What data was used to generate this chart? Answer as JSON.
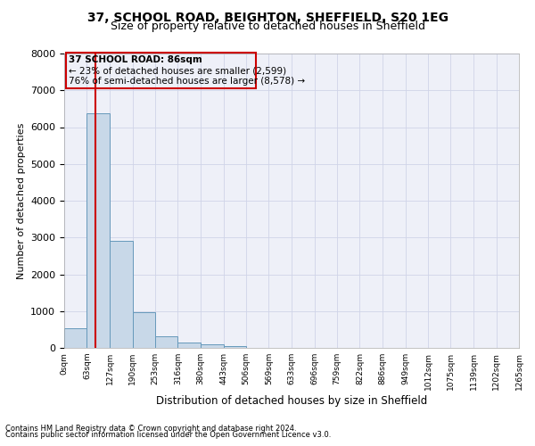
{
  "title_line1": "37, SCHOOL ROAD, BEIGHTON, SHEFFIELD, S20 1EG",
  "title_line2": "Size of property relative to detached houses in Sheffield",
  "xlabel": "Distribution of detached houses by size in Sheffield",
  "ylabel": "Number of detached properties",
  "footer_line1": "Contains HM Land Registry data © Crown copyright and database right 2024.",
  "footer_line2": "Contains public sector information licensed under the Open Government Licence v3.0.",
  "bar_edges": [
    0,
    63,
    127,
    190,
    253,
    316,
    380,
    443,
    506,
    569,
    633,
    696,
    759,
    822,
    886,
    949,
    1012,
    1075,
    1139,
    1202,
    1265
  ],
  "bar_labels": [
    "0sqm",
    "63sqm",
    "127sqm",
    "190sqm",
    "253sqm",
    "316sqm",
    "380sqm",
    "443sqm",
    "506sqm",
    "569sqm",
    "633sqm",
    "696sqm",
    "759sqm",
    "822sqm",
    "886sqm",
    "949sqm",
    "1012sqm",
    "1075sqm",
    "1139sqm",
    "1202sqm",
    "1265sqm"
  ],
  "bar_heights": [
    540,
    6380,
    2920,
    960,
    320,
    150,
    100,
    60,
    0,
    0,
    0,
    0,
    0,
    0,
    0,
    0,
    0,
    0,
    0,
    0
  ],
  "bar_color": "#c8d8e8",
  "bar_edgecolor": "#6699bb",
  "grid_color": "#d0d4e8",
  "background_color": "#eef0f8",
  "ylim": [
    0,
    8000
  ],
  "yticks": [
    0,
    1000,
    2000,
    3000,
    4000,
    5000,
    6000,
    7000,
    8000
  ],
  "property_label": "37 SCHOOL ROAD: 86sqm",
  "annotation_line1": "← 23% of detached houses are smaller (2,599)",
  "annotation_line2": "76% of semi-detached houses are larger (8,578) →",
  "vline_x": 86,
  "vline_color": "#cc0000",
  "box_edgecolor": "#cc0000",
  "annotation_fontsize": 7.5,
  "title1_fontsize": 10,
  "title2_fontsize": 9,
  "ylabel_fontsize": 8,
  "xlabel_fontsize": 8.5,
  "footer_fontsize": 6,
  "xtick_fontsize": 6.5,
  "ytick_fontsize": 8
}
